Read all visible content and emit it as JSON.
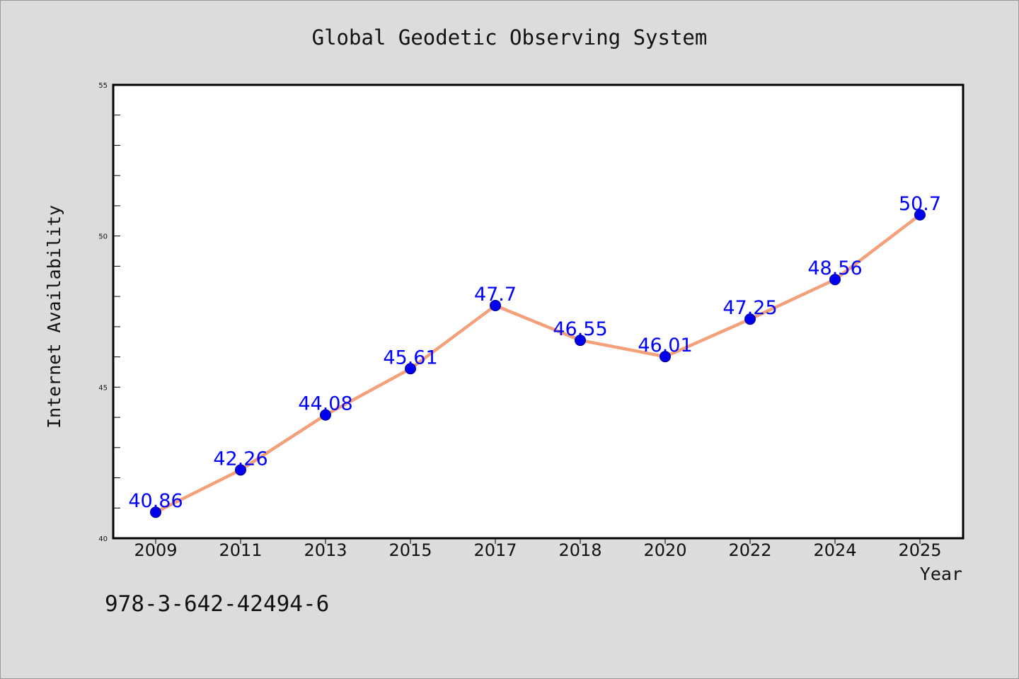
{
  "chart_data": {
    "type": "line",
    "title": "Global Geodetic Observing System",
    "xlabel": "Year",
    "ylabel": "Internet Availability",
    "categories": [
      "2009",
      "2011",
      "2013",
      "2015",
      "2017",
      "2018",
      "2020",
      "2022",
      "2024",
      "2025"
    ],
    "series": [
      {
        "values": [
          40.86,
          42.26,
          44.08,
          45.61,
          47.7,
          46.55,
          46.01,
          47.25,
          48.56,
          50.7
        ],
        "labels": [
          "40.86",
          "42.26",
          "44.08",
          "45.61",
          "47.7",
          "46.55",
          "46.01",
          "47.25",
          "48.56",
          "50.7"
        ]
      }
    ],
    "ylim": [
      40,
      55
    ],
    "yticks": [
      "40",
      "45",
      "50",
      "55"
    ],
    "grid": false,
    "annotation": "978-3-642-42494-6",
    "colors": {
      "line": "#f4a07a",
      "marker": "#0000ee",
      "marker_edge": "#00008b",
      "data_label": "#0000ff",
      "plot_bg": "#ffffff",
      "figure_bg": "#dcdcdc",
      "axes": "#000000"
    }
  }
}
